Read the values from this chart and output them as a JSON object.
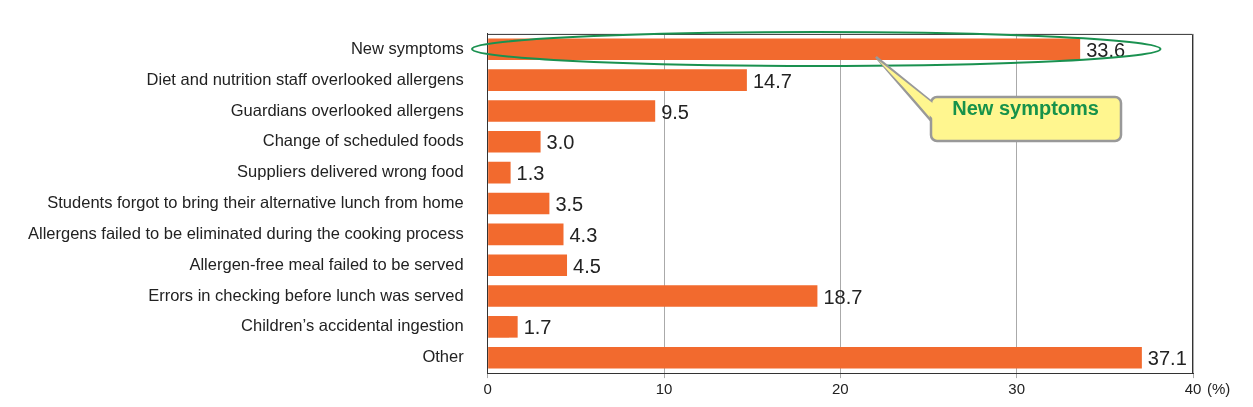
{
  "chart_data": {
    "type": "bar",
    "orientation": "horizontal",
    "xlabel": "(%)",
    "categories": [
      "New symptoms",
      "Diet and nutrition staff overlooked allergens",
      "Guardians overlooked allergens",
      "Change of scheduled foods",
      "Suppliers delivered wrong food",
      "Students forgot to bring their alternative lunch from home",
      "Allergens failed to be eliminated during the cooking process",
      "Allergen-free meal failed to be served",
      "Errors in checking before lunch was served",
      "Children’s accidental ingestion",
      "Other"
    ],
    "values": [
      33.6,
      14.7,
      9.5,
      3.0,
      1.3,
      3.5,
      4.3,
      4.5,
      18.7,
      1.7,
      37.1
    ],
    "value_labels": [
      "33.6",
      "14.7",
      "9.5",
      "3.0",
      "1.3",
      "3.5",
      "4.3",
      "4.5",
      "18.7",
      "1.7",
      "37.1"
    ],
    "color": "#f26a2e",
    "xlim": [
      0,
      40
    ],
    "xticks": [
      0,
      10,
      20,
      30,
      40
    ],
    "grid": "x",
    "legend": false,
    "annotations": [
      "New symptoms"
    ]
  }
}
